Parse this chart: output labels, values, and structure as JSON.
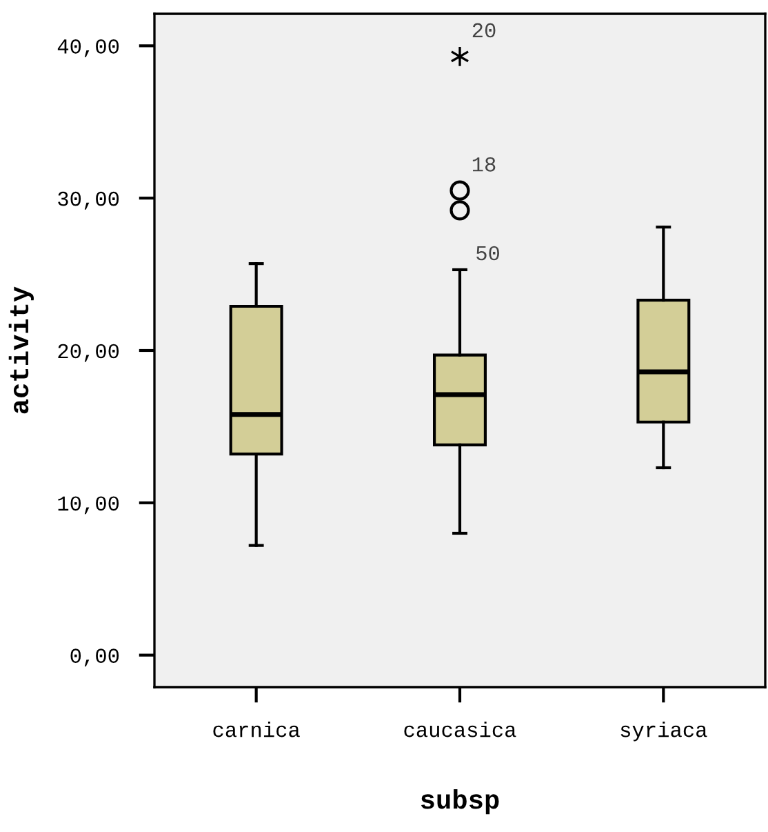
{
  "chart_data": {
    "type": "box",
    "xlabel": "subsp",
    "ylabel": "activity",
    "categories": [
      "carnica",
      "caucasica",
      "syriaca"
    ],
    "boxes": [
      {
        "low": 7.2,
        "q1": 13.2,
        "median": 15.8,
        "q3": 22.9,
        "high": 25.7
      },
      {
        "low": 8.0,
        "q1": 13.8,
        "median": 17.1,
        "q3": 19.7,
        "high": 25.3,
        "outliers": [
          39.3,
          30.5,
          29.2
        ]
      },
      {
        "low": 12.3,
        "q1": 15.3,
        "median": 18.6,
        "q3": 23.3,
        "high": 28.1
      }
    ],
    "color": "#d3ce97",
    "ylim": [
      -2.1,
      42.1
    ],
    "yticks": [
      {
        "value": 0,
        "label": "0,00"
      },
      {
        "value": 10,
        "label": "10,00"
      },
      {
        "value": 20,
        "label": "20,00"
      },
      {
        "value": 30,
        "label": "30,00"
      },
      {
        "value": 40,
        "label": "40,00"
      }
    ],
    "annotations": [
      "20",
      "18",
      "50"
    ],
    "grid": false
  }
}
